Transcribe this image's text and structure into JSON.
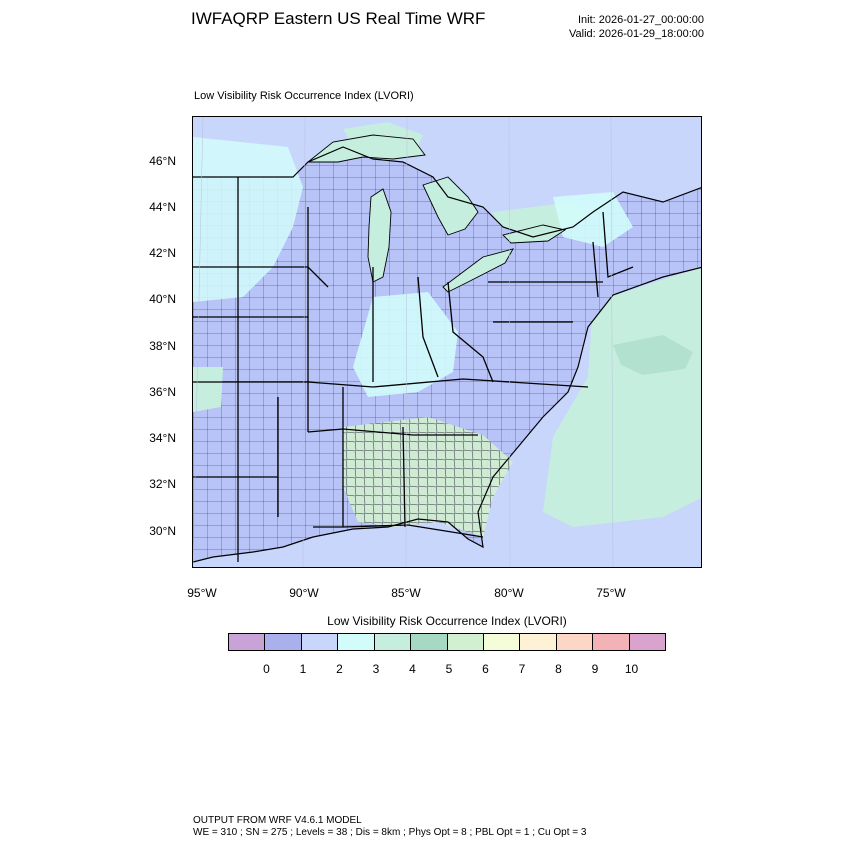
{
  "header": {
    "title": "IWFAQRP Eastern US Real Time WRF",
    "init": "Init: 2026-01-27_00:00:00",
    "valid": "Valid: 2026-01-29_18:00:00"
  },
  "plot": {
    "label": "Low Visibility Risk Occurrence Index   (LVORI)"
  },
  "axes": {
    "lat_labels": [
      "46°N",
      "44°N",
      "42°N",
      "40°N",
      "38°N",
      "36°N",
      "34°N",
      "32°N",
      "30°N"
    ],
    "lon_labels": [
      "95°W",
      "90°W",
      "85°W",
      "80°W",
      "75°W"
    ]
  },
  "colorbar": {
    "title": "Low Visibility Risk Occurrence Index  (LVORI)",
    "colors": [
      "#c9a2d8",
      "#aab0ec",
      "#c8d6fc",
      "#d2fcfa",
      "#c6eedf",
      "#a6d9c4",
      "#d2f0cf",
      "#f4fdd7",
      "#fdf2d6",
      "#fcd6c6",
      "#f3b3b6",
      "#d9a3cd"
    ],
    "ticks": [
      "0",
      "1",
      "2",
      "3",
      "4",
      "5",
      "6",
      "7",
      "8",
      "9",
      "10"
    ]
  },
  "map_colors": {
    "water_level1": "#c8d6fc",
    "land_level1": "#b8c3f7",
    "level3": "#d2fcfa",
    "level4": "#c6eedf",
    "level5": "#a6d9c4",
    "level6": "#d2f0cf"
  },
  "footer": {
    "line1": "OUTPUT FROM WRF V4.6.1 MODEL",
    "line2": "WE = 310 ; SN = 275 ; Levels = 38 ; Dis = 8km ; Phys Opt = 8 ; PBL Opt = 1 ; Cu Opt = 3"
  }
}
